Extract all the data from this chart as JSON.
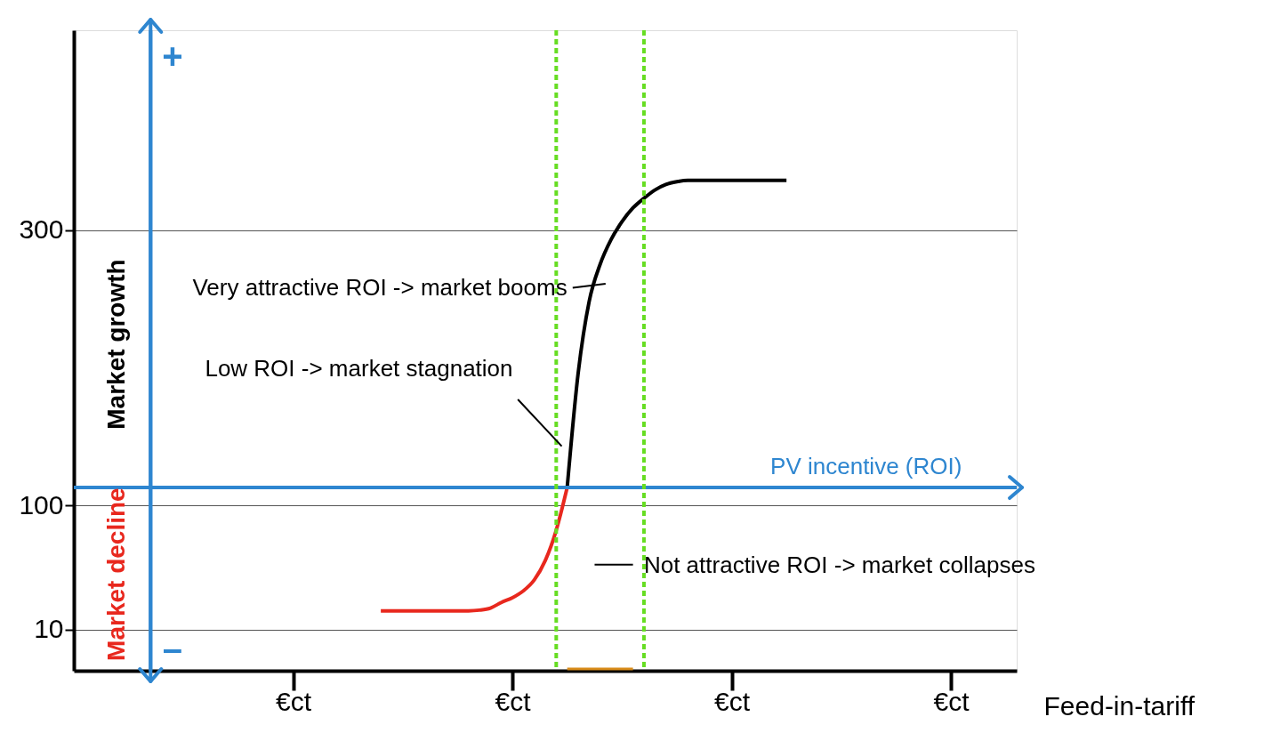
{
  "chart_data": {
    "type": "line",
    "xlabel": "Feed-in-tariff",
    "categories": [
      null,
      null,
      null,
      null,
      null,
      null,
      null,
      null,
      null,
      null,
      null,
      null,
      null,
      null,
      null,
      null,
      null,
      null,
      null,
      null,
      "€ct",
      null,
      null,
      null,
      null,
      null,
      null,
      null,
      null,
      null,
      null,
      null,
      null,
      null,
      null,
      null,
      null,
      null,
      null,
      null,
      "€ct",
      null,
      null,
      null,
      null,
      null,
      null,
      null,
      null,
      null,
      null,
      null,
      null,
      null,
      null,
      null,
      null,
      null,
      null,
      null,
      "€ct",
      null,
      null,
      null,
      null,
      null,
      null,
      null,
      null,
      null,
      null,
      null,
      null,
      null,
      null,
      null,
      null,
      null,
      null,
      null,
      "€ct",
      null,
      null,
      null,
      null,
      null,
      null
    ],
    "ylim": [
      -20,
      445
    ],
    "yticks": [
      10,
      100,
      300
    ],
    "grid": "y",
    "line_style": "solid",
    "marker": "none",
    "series": [
      {
        "color": "#e8281e",
        "values": [
          null,
          null,
          null,
          null,
          null,
          null,
          null,
          null,
          null,
          null,
          null,
          null,
          null,
          null,
          null,
          null,
          null,
          null,
          null,
          null,
          null,
          null,
          null,
          null,
          null,
          null,
          null,
          null,
          23.5,
          23.5,
          23.5,
          23.5,
          23.5,
          23.5,
          23.5,
          23.5,
          23.5,
          24,
          25.5,
          29.6,
          33,
          38,
          46,
          60,
          82,
          113,
          null,
          null,
          null,
          null,
          null,
          null,
          null,
          null,
          null,
          null,
          null,
          null,
          null,
          null,
          null,
          null,
          null,
          null,
          null,
          null,
          null,
          null,
          null,
          null,
          null,
          null,
          null,
          null,
          null,
          null,
          null,
          null,
          null,
          null,
          null,
          null,
          null,
          null,
          null,
          null,
          null
        ]
      },
      {
        "color": "#000000",
        "values": [
          null,
          null,
          null,
          null,
          null,
          null,
          null,
          null,
          null,
          null,
          null,
          null,
          null,
          null,
          null,
          null,
          null,
          null,
          null,
          null,
          null,
          null,
          null,
          null,
          null,
          null,
          null,
          null,
          null,
          null,
          null,
          null,
          null,
          null,
          null,
          null,
          null,
          null,
          null,
          null,
          null,
          null,
          null,
          null,
          null,
          113,
          196,
          248,
          275,
          293,
          306,
          316,
          323,
          329,
          333,
          335,
          336,
          336,
          336,
          336,
          336,
          336,
          336,
          336,
          336,
          336,
          null,
          null,
          null,
          null,
          null,
          null,
          null,
          null,
          null,
          null,
          null,
          null,
          null,
          null,
          null,
          null,
          null,
          null,
          null,
          null,
          null
        ]
      }
    ],
    "ref_lines": [
      {
        "axis": "y",
        "value": 113,
        "label": "PV incentive (ROI)",
        "color": "#2e86d0"
      }
    ],
    "annotations": [
      "Very attractive ROI -> market booms",
      "Low ROI -> market stagnation",
      "Not attractive ROI -> market collapses",
      "+",
      "–",
      "Market growth",
      "Market decline"
    ]
  }
}
